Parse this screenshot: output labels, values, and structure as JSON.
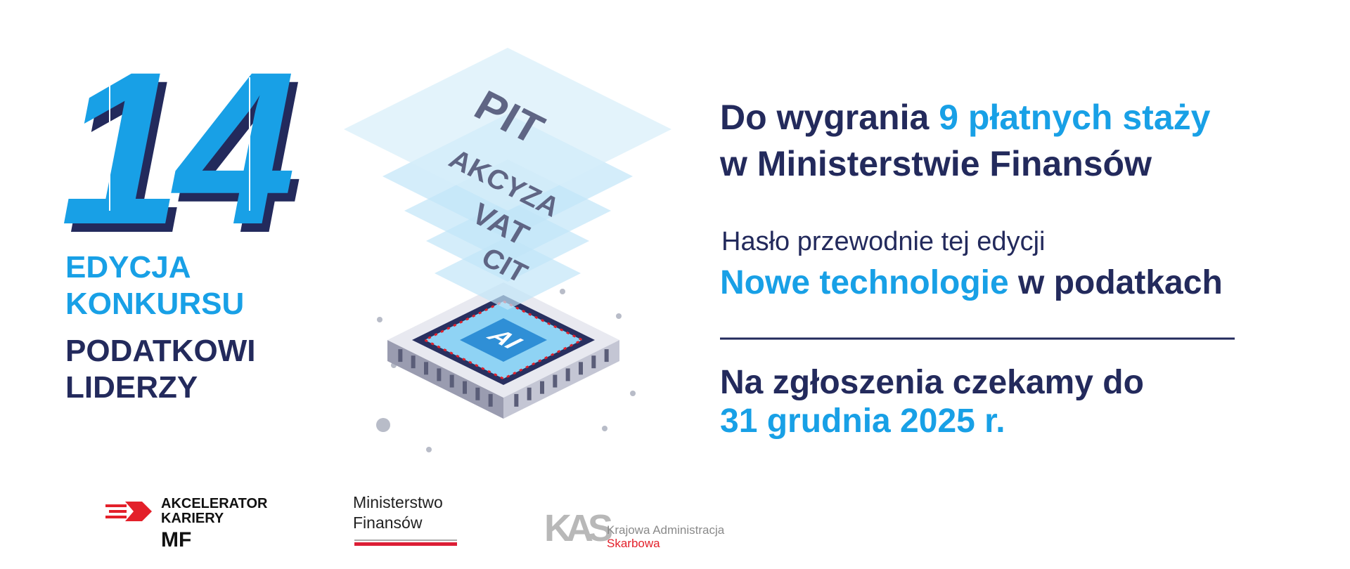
{
  "number": "14",
  "edition": {
    "line1": "EDYCJA",
    "line2": "KONKURSU",
    "line3": "PODATKOWI",
    "line4": "LIDERZY"
  },
  "chip_labels": [
    "PIT",
    "AKCYZA",
    "VAT",
    "CIT"
  ],
  "chip_core": "AI",
  "headline": {
    "part1": "Do wygrania ",
    "highlight": "9 płatnych staży",
    "line2": "w Ministerstwie Finansów"
  },
  "motto": {
    "intro": "Hasło przewodnie tej edycji",
    "highlight": "Nowe technologie",
    "rest": " w podatkach"
  },
  "deadline": {
    "line1": "Na zgłoszenia czekamy do",
    "date": "31 grudnia 2025 r."
  },
  "logos": {
    "akcelerator": [
      "AKCELERATOR",
      "KARIERY",
      "MF"
    ],
    "ministerstwo": [
      "Ministerstwo",
      "Finansów"
    ],
    "kas": {
      "mark": "KAS",
      "line1": "Krajowa Administracja",
      "line2": "Skarbowa"
    }
  }
}
